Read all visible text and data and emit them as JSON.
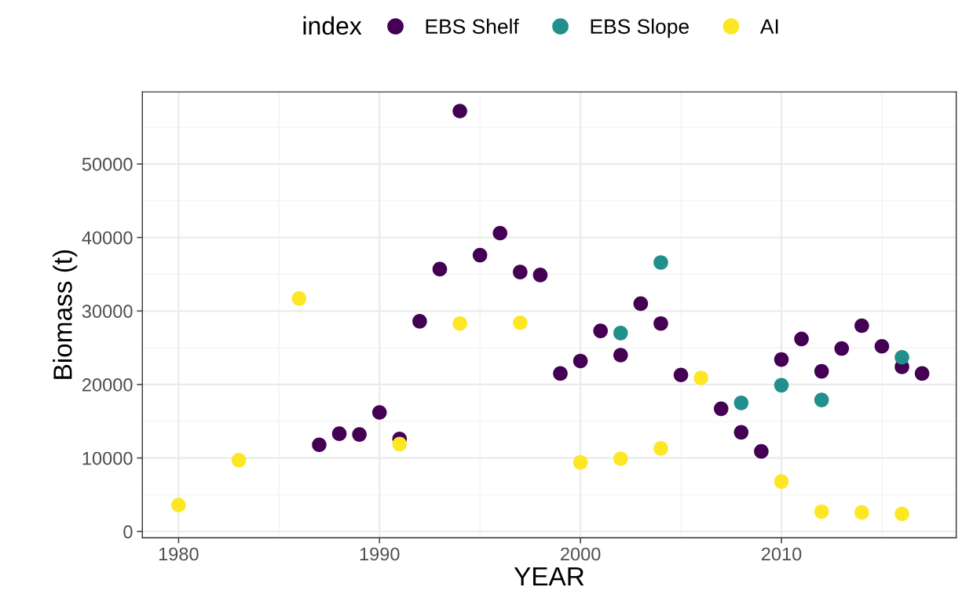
{
  "chart_data": {
    "type": "scatter",
    "xlabel": "YEAR",
    "ylabel": "Biomass (t)",
    "legend_title": "index",
    "legend": "top",
    "grid": true,
    "marker": "circle",
    "xlim": [
      1978.2,
      2018.7
    ],
    "xticks": [
      1980,
      1990,
      2000,
      2010
    ],
    "ylim": [
      -850,
      59800
    ],
    "yticks": [
      0,
      10000,
      20000,
      30000,
      40000,
      50000
    ],
    "series": [
      {
        "name": "EBS Shelf",
        "color": "#440154",
        "x": [
          1987,
          1988,
          1989,
          1990,
          1991,
          1992,
          1993,
          1994,
          1995,
          1996,
          1997,
          1998,
          1999,
          2000,
          2001,
          2002,
          2003,
          2004,
          2005,
          2007,
          2008,
          2009,
          2010,
          2011,
          2012,
          2013,
          2014,
          2015,
          2016,
          2017
        ],
        "values": [
          11800,
          13300,
          13200,
          16200,
          12600,
          28600,
          35700,
          57200,
          37600,
          40600,
          35300,
          34900,
          21500,
          23200,
          27300,
          24000,
          31000,
          28300,
          21300,
          16700,
          13500,
          10900,
          23400,
          26200,
          21800,
          24900,
          28000,
          25200,
          22400,
          21500
        ]
      },
      {
        "name": "EBS Slope",
        "color": "#21908c",
        "x": [
          2002,
          2004,
          2008,
          2010,
          2012,
          2016
        ],
        "values": [
          27000,
          36600,
          17500,
          19900,
          17900,
          23700
        ]
      },
      {
        "name": "AI",
        "color": "#fde725",
        "x": [
          1980,
          1983,
          1986,
          1991,
          1994,
          1997,
          2000,
          2002,
          2004,
          2006,
          2010,
          2012,
          2014,
          2016
        ],
        "values": [
          3600,
          9700,
          31700,
          11900,
          28300,
          28400,
          9400,
          9900,
          11300,
          20900,
          6800,
          2700,
          2600,
          2400
        ]
      }
    ]
  }
}
